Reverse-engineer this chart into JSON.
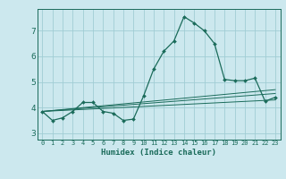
{
  "title": "",
  "xlabel": "Humidex (Indice chaleur)",
  "bg_color": "#cce8ee",
  "grid_color": "#a0cdd4",
  "line_color": "#1a6b5a",
  "xlim": [
    -0.5,
    23.5
  ],
  "ylim": [
    2.75,
    7.85
  ],
  "yticks": [
    3,
    4,
    5,
    6,
    7
  ],
  "xticks": [
    0,
    1,
    2,
    3,
    4,
    5,
    6,
    7,
    8,
    9,
    10,
    11,
    12,
    13,
    14,
    15,
    16,
    17,
    18,
    19,
    20,
    21,
    22,
    23
  ],
  "main_x": [
    0,
    1,
    2,
    3,
    4,
    5,
    6,
    7,
    8,
    9,
    10,
    11,
    12,
    13,
    14,
    15,
    16,
    17,
    18,
    19,
    20,
    21,
    22,
    23
  ],
  "main_y": [
    3.85,
    3.5,
    3.6,
    3.85,
    4.2,
    4.2,
    3.85,
    3.78,
    3.5,
    3.55,
    4.45,
    5.5,
    6.2,
    6.6,
    7.55,
    7.3,
    7.0,
    6.5,
    5.1,
    5.05,
    5.05,
    5.15,
    4.25,
    4.4
  ],
  "trend1_x": [
    0,
    23
  ],
  "trend1_y": [
    3.85,
    4.3
  ],
  "trend2_x": [
    0,
    23
  ],
  "trend2_y": [
    3.85,
    4.7
  ],
  "trend3_x": [
    0,
    23
  ],
  "trend3_y": [
    3.85,
    4.55
  ]
}
